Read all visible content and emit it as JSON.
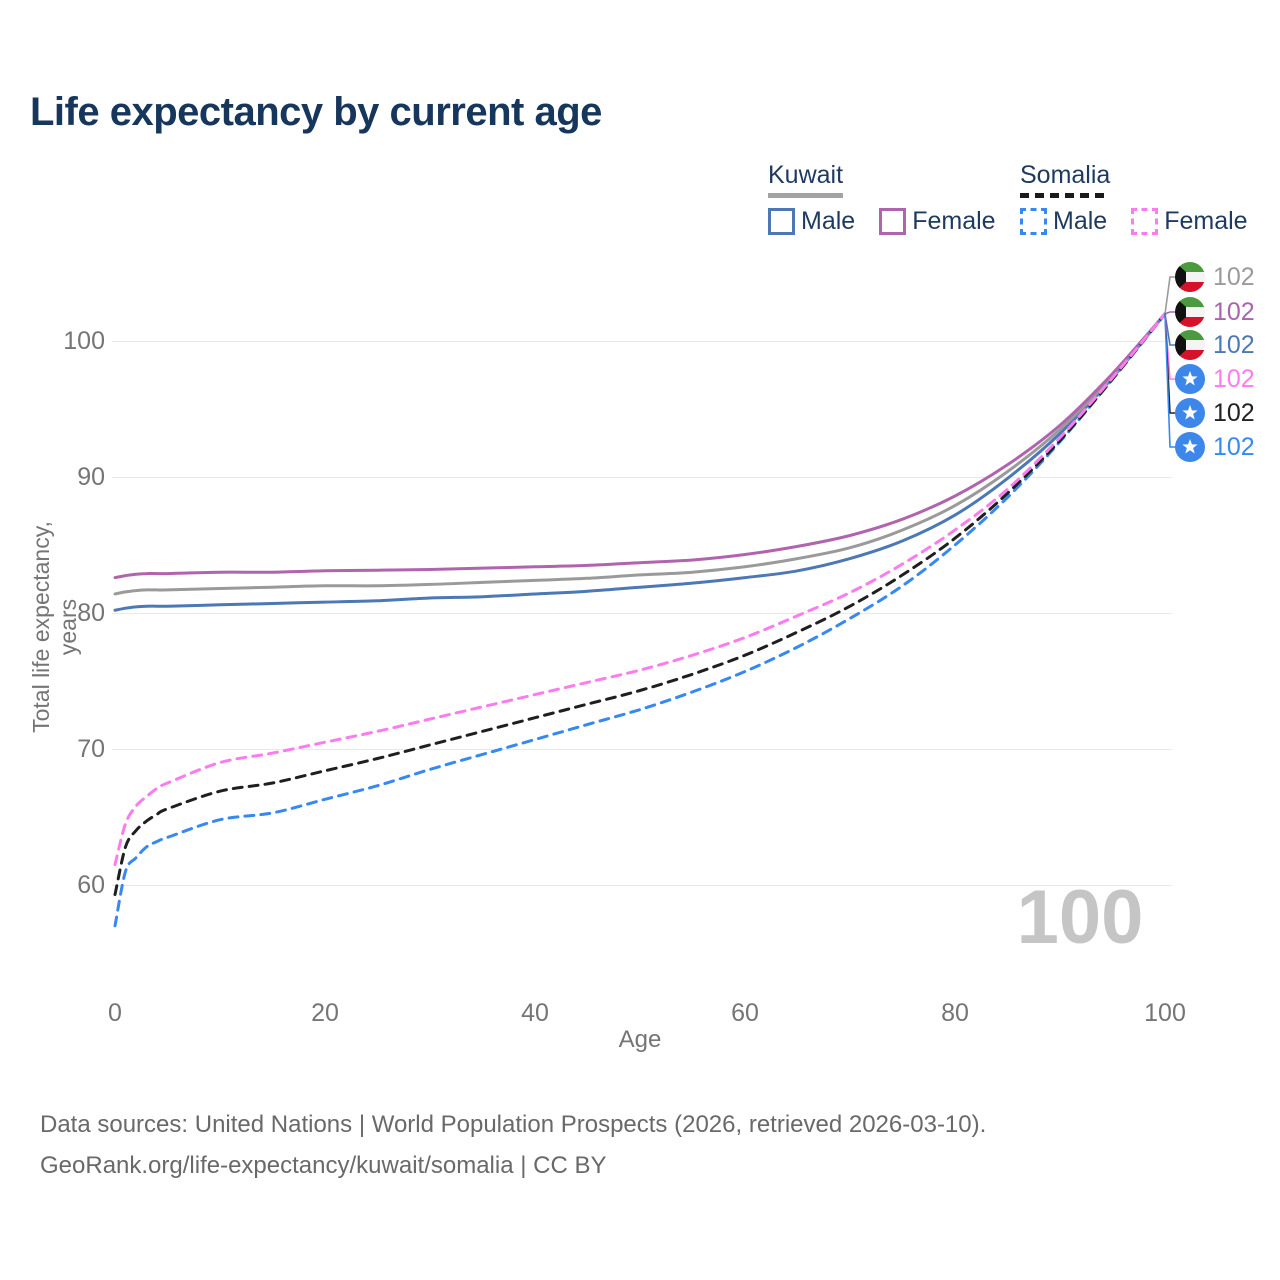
{
  "title": "Life expectancy by current age",
  "legend": {
    "groups": [
      {
        "name": "Kuwait",
        "line_style": "solid",
        "underline_color": "#a3a3a3",
        "items": [
          {
            "label": "Male",
            "color": "#4c78b5"
          },
          {
            "label": "Female",
            "color": "#b164ae"
          }
        ]
      },
      {
        "name": "Somalia",
        "line_style": "dashed",
        "underline_color": "#1a1a1a",
        "items": [
          {
            "label": "Male",
            "color": "#3788f0"
          },
          {
            "label": "Female",
            "color": "#fa7cee"
          }
        ]
      }
    ]
  },
  "chart_data": {
    "type": "line",
    "title": "Life expectancy by current age",
    "xlabel": "Age",
    "ylabel": "Total life expectancy, years",
    "xlim": [
      0,
      100
    ],
    "ylim": [
      55,
      104
    ],
    "x_ticks": [
      0,
      20,
      40,
      60,
      80,
      100
    ],
    "y_ticks": [
      100,
      90,
      80,
      70,
      60
    ],
    "grid": "horizontal",
    "legend_position": "top-right",
    "x": [
      0,
      1,
      2,
      3,
      4,
      5,
      10,
      15,
      20,
      25,
      30,
      35,
      40,
      45,
      50,
      55,
      60,
      65,
      70,
      75,
      80,
      85,
      90,
      95,
      100
    ],
    "series": [
      {
        "name": "Kuwait male",
        "country": "Kuwait",
        "sex": "Male",
        "color": "#4c78b5",
        "dashed": false,
        "values": [
          80.2,
          80.35,
          80.45,
          80.5,
          80.5,
          80.5,
          80.6,
          80.7,
          80.8,
          80.9,
          81.1,
          81.2,
          81.4,
          81.6,
          81.9,
          82.2,
          82.6,
          83.1,
          84.0,
          85.3,
          87.2,
          89.9,
          93.2,
          97.3,
          102
        ]
      },
      {
        "name": "Kuwait both sexes",
        "country": "Kuwait",
        "sex": "Both",
        "color": "#9a9a9a",
        "dashed": false,
        "values": [
          81.4,
          81.55,
          81.65,
          81.7,
          81.7,
          81.7,
          81.8,
          81.9,
          82.0,
          82.0,
          82.1,
          82.25,
          82.4,
          82.55,
          82.8,
          83.0,
          83.4,
          84.0,
          84.8,
          86.1,
          87.9,
          90.4,
          93.5,
          97.4,
          102
        ]
      },
      {
        "name": "Kuwait female",
        "country": "Kuwait",
        "sex": "Female",
        "color": "#b164ae",
        "dashed": false,
        "values": [
          82.6,
          82.75,
          82.85,
          82.9,
          82.9,
          82.9,
          83.0,
          83.0,
          83.1,
          83.15,
          83.2,
          83.3,
          83.4,
          83.5,
          83.7,
          83.9,
          84.3,
          84.9,
          85.7,
          86.9,
          88.6,
          90.9,
          93.8,
          97.6,
          102
        ]
      },
      {
        "name": "Somalia male",
        "country": "Somalia",
        "sex": "Male",
        "color": "#3788f0",
        "dashed": true,
        "values": [
          57.0,
          61.0,
          62.0,
          62.8,
          63.2,
          63.5,
          64.8,
          65.3,
          66.3,
          67.3,
          68.5,
          69.6,
          70.7,
          71.8,
          72.9,
          74.2,
          75.7,
          77.5,
          79.6,
          82.0,
          85.0,
          88.5,
          92.6,
          97.2,
          102
        ]
      },
      {
        "name": "Somalia both sexes",
        "country": "Somalia",
        "sex": "Both",
        "color": "#1f1f1f",
        "dashed": true,
        "values": [
          59.3,
          62.8,
          64.0,
          64.7,
          65.2,
          65.6,
          66.9,
          67.5,
          68.4,
          69.3,
          70.3,
          71.3,
          72.3,
          73.3,
          74.3,
          75.5,
          76.9,
          78.6,
          80.5,
          82.8,
          85.5,
          88.8,
          92.7,
          97.2,
          102
        ]
      },
      {
        "name": "Somalia female",
        "country": "Somalia",
        "sex": "Female",
        "color": "#fa7cee",
        "dashed": true,
        "values": [
          61.5,
          64.5,
          65.8,
          66.5,
          67.1,
          67.5,
          69.0,
          69.7,
          70.5,
          71.3,
          72.2,
          73.1,
          74.0,
          74.9,
          75.8,
          76.9,
          78.2,
          79.8,
          81.5,
          83.6,
          86.1,
          89.1,
          92.9,
          97.3,
          102
        ]
      }
    ]
  },
  "end_labels": [
    {
      "flag": "kuwait",
      "value": "102",
      "color": "#9a9a9a",
      "series": "Kuwait both sexes"
    },
    {
      "flag": "kuwait",
      "value": "102",
      "color": "#a864ad",
      "series": "Kuwait female"
    },
    {
      "flag": "kuwait",
      "value": "102",
      "color": "#4c78b5",
      "series": "Kuwait male"
    },
    {
      "flag": "somalia",
      "value": "102",
      "color": "#fa7cee",
      "series": "Somalia female"
    },
    {
      "flag": "somalia",
      "value": "102",
      "color": "#222222",
      "series": "Somalia both sexes"
    },
    {
      "flag": "somalia",
      "value": "102",
      "color": "#3788f0",
      "series": "Somalia male"
    }
  ],
  "age_indicator": "100",
  "footer": {
    "line1": "Data sources: United Nations | World Population Prospects (2026, retrieved 2026-03-10).",
    "line2": "GeoRank.org/life-expectancy/kuwait/somalia | CC BY"
  }
}
